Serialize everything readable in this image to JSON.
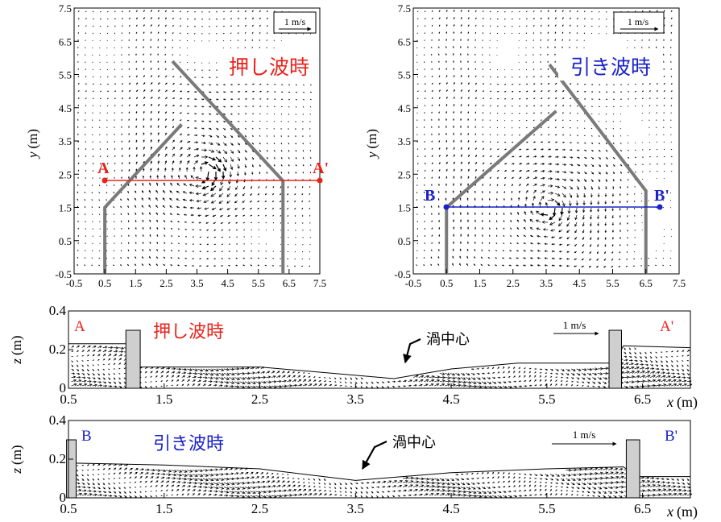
{
  "colors": {
    "red": "#e8231c",
    "blue": "#1a22c8",
    "wall": "#7a7a7a",
    "wall_box": "#cfcfcf",
    "arrow": "#000000"
  },
  "chart_data": [
    {
      "type": "vector-field",
      "id": "plan-push",
      "xlabel": "",
      "ylabel": "y (m)",
      "ylabel_var": "y",
      "ylabel_unit": "(m)",
      "xlim": [
        -0.5,
        7.5
      ],
      "ylim": [
        -0.5,
        7.5
      ],
      "xticks": [
        "-0.5",
        "0.5",
        "1.5",
        "2.5",
        "3.5",
        "4.5",
        "5.5",
        "6.5",
        "7.5"
      ],
      "yticks": [
        "-0.5",
        "0.5",
        "1.5",
        "2.5",
        "3.5",
        "4.5",
        "5.5",
        "6.5",
        "7.5"
      ],
      "annotation": "押し波時",
      "annotation_color": "#e8231c",
      "scale_label": "1 m/s",
      "section_line": {
        "label_start": "A",
        "label_end": "A'",
        "y": 2.3,
        "x0": 0.5,
        "x1": 7.0,
        "color": "#e8231c"
      },
      "walls": [
        [
          0.5,
          -0.5
        ],
        [
          0.5,
          1.5
        ],
        [
          3.0,
          4.0
        ]
      ],
      "walls2": [
        [
          6.3,
          -0.5
        ],
        [
          6.3,
          2.3
        ],
        [
          2.7,
          5.9
        ]
      ],
      "vortex_center": [
        3.8,
        2.6
      ]
    },
    {
      "type": "vector-field",
      "id": "plan-pull",
      "xlabel": "",
      "ylabel": "y (m)",
      "ylabel_var": "y",
      "ylabel_unit": "(m)",
      "xlim": [
        -0.5,
        7.5
      ],
      "ylim": [
        -0.5,
        7.5
      ],
      "xticks": [
        "-0.5",
        "0.5",
        "1.5",
        "2.5",
        "3.5",
        "4.5",
        "5.5",
        "6.5",
        "7.5"
      ],
      "yticks": [
        "-0.5",
        "0.5",
        "1.5",
        "2.5",
        "3.5",
        "4.5",
        "5.5",
        "6.5",
        "7.5"
      ],
      "annotation": "引き波時",
      "annotation_color": "#1a22c8",
      "scale_label": "1 m/s",
      "section_line": {
        "label_start": "B",
        "label_end": "B'",
        "y": 1.5,
        "x0": 0.5,
        "x1": 7.0,
        "color": "#1a22c8"
      },
      "walls": [
        [
          0.5,
          -0.5
        ],
        [
          0.5,
          1.5
        ],
        [
          3.8,
          4.4
        ]
      ],
      "walls2": [
        [
          6.5,
          -0.5
        ],
        [
          6.5,
          2.0
        ],
        [
          3.6,
          5.8
        ]
      ],
      "vortex_center": [
        3.6,
        1.5
      ]
    },
    {
      "type": "vector-field",
      "id": "section-A",
      "xlabel": "x (m)",
      "xlabel_var": "x",
      "xlabel_unit": "(m)",
      "ylabel": "z (m)",
      "ylabel_var": "z",
      "ylabel_unit": "(m)",
      "xlim": [
        0.5,
        7.0
      ],
      "ylim": [
        0,
        0.4
      ],
      "xticks": [
        "0.5",
        "1.5",
        "2.5",
        "3.5",
        "4.5",
        "5.5",
        "6.5"
      ],
      "yticks": [
        "0",
        "0.2",
        "0.4"
      ],
      "label_start": "A",
      "label_end": "A'",
      "label_color": "#e8231c",
      "annotation": "押し波時",
      "annotation_color": "#e8231c",
      "vortex_label": "渦中心",
      "scale_label": "1 m/s",
      "surface": [
        [
          0.5,
          0.23
        ],
        [
          1.1,
          0.23
        ],
        [
          1.25,
          0.11
        ],
        [
          2.5,
          0.11
        ],
        [
          3.9,
          0.05
        ],
        [
          4.5,
          0.1
        ],
        [
          5.2,
          0.13
        ],
        [
          6.2,
          0.13
        ],
        [
          6.3,
          0.22
        ],
        [
          7.0,
          0.21
        ]
      ],
      "blocks": [
        [
          1.1,
          1.25,
          0.3
        ],
        [
          6.15,
          6.28,
          0.3
        ]
      ]
    },
    {
      "type": "vector-field",
      "id": "section-B",
      "xlabel": "x (m)",
      "xlabel_var": "x",
      "xlabel_unit": "(m)",
      "ylabel": "z (m)",
      "ylabel_var": "z",
      "ylabel_unit": "(m)",
      "xlim": [
        0.5,
        7.0
      ],
      "ylim": [
        0,
        0.4
      ],
      "xticks": [
        "0.5",
        "1.5",
        "2.5",
        "3.5",
        "4.5",
        "5.5",
        "6.5"
      ],
      "yticks": [
        "0",
        "0.2",
        "0.4"
      ],
      "label_start": "B",
      "label_end": "B'",
      "label_color": "#1a22c8",
      "annotation": "引き波時",
      "annotation_color": "#1a22c8",
      "vortex_label": "渦中心",
      "scale_label": "1 m/s",
      "surface": [
        [
          0.5,
          0.18
        ],
        [
          1.5,
          0.17
        ],
        [
          2.5,
          0.15
        ],
        [
          3.5,
          0.09
        ],
        [
          4.5,
          0.13
        ],
        [
          5.5,
          0.15
        ],
        [
          6.3,
          0.16
        ],
        [
          6.45,
          0.11
        ],
        [
          7.0,
          0.11
        ]
      ],
      "blocks": [
        [
          0.48,
          0.58,
          0.3
        ],
        [
          6.33,
          6.47,
          0.3
        ]
      ]
    }
  ]
}
